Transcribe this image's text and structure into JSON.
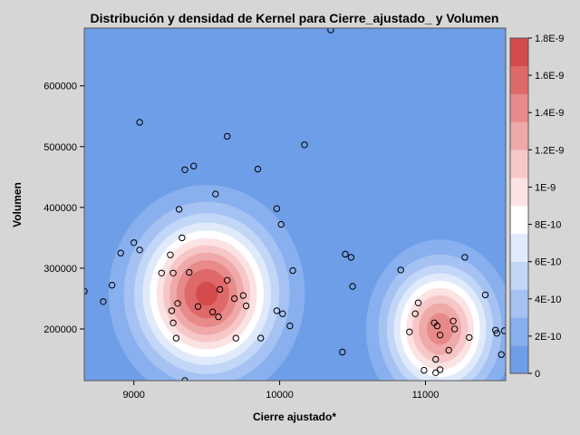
{
  "chart_data": {
    "type": "scatter",
    "title": "Distribución y densidad de Kernel para Cierre_ajustado_ y Volumen",
    "xlabel": "Cierre ajustado*",
    "ylabel": "Volumen",
    "xlim": [
      8660,
      11550
    ],
    "ylim": [
      115000,
      695000
    ],
    "x_ticks": [
      {
        "value": 9000,
        "label": "9000"
      },
      {
        "value": 10000,
        "label": "10000"
      },
      {
        "value": 11000,
        "label": "11000"
      }
    ],
    "y_ticks": [
      {
        "value": 200000,
        "label": "200000"
      },
      {
        "value": 300000,
        "label": "300000"
      },
      {
        "value": 400000,
        "label": "400000"
      },
      {
        "value": 500000,
        "label": "500000"
      },
      {
        "value": 600000,
        "label": "600000"
      }
    ],
    "density_legend": {
      "min": 0,
      "max": 1.8e-09,
      "labels": [
        {
          "value": 0,
          "label": "0"
        },
        {
          "value": 2e-10,
          "label": "2E-10"
        },
        {
          "value": 4e-10,
          "label": "4E-10"
        },
        {
          "value": 6e-10,
          "label": "6E-10"
        },
        {
          "value": 8e-10,
          "label": "8E-10"
        },
        {
          "value": 1e-09,
          "label": "1E-9"
        },
        {
          "value": 1.2e-09,
          "label": "1.2E-9"
        },
        {
          "value": 1.4e-09,
          "label": "1.4E-9"
        },
        {
          "value": 1.6e-09,
          "label": "1.6E-9"
        },
        {
          "value": 1.8e-09,
          "label": "1.8E-9"
        }
      ],
      "colors": [
        "#6f9ee8",
        "#89b0ee",
        "#a5c2f3",
        "#c2d6f7",
        "#e0eafb",
        "#ffffff",
        "#fce3e3",
        "#f7c7c7",
        "#f0a9a9",
        "#e88a8a",
        "#df6969",
        "#d44b4b"
      ]
    },
    "kernel_peaks": [
      {
        "x": 9500,
        "y": 258000,
        "height": 1.7e-09
      },
      {
        "x": 11100,
        "y": 200000,
        "height": 1.45e-09
      }
    ],
    "points": [
      {
        "x": 8660,
        "y": 262000
      },
      {
        "x": 8790,
        "y": 245000
      },
      {
        "x": 8850,
        "y": 272000
      },
      {
        "x": 8910,
        "y": 325000
      },
      {
        "x": 9000,
        "y": 342000
      },
      {
        "x": 9040,
        "y": 330000
      },
      {
        "x": 9040,
        "y": 540000
      },
      {
        "x": 9190,
        "y": 292000
      },
      {
        "x": 9250,
        "y": 322000
      },
      {
        "x": 9260,
        "y": 230000
      },
      {
        "x": 9270,
        "y": 210000
      },
      {
        "x": 9270,
        "y": 292000
      },
      {
        "x": 9290,
        "y": 185000
      },
      {
        "x": 9300,
        "y": 242000
      },
      {
        "x": 9310,
        "y": 397000
      },
      {
        "x": 9330,
        "y": 350000
      },
      {
        "x": 9350,
        "y": 462000
      },
      {
        "x": 9350,
        "y": 115000
      },
      {
        "x": 9380,
        "y": 293000
      },
      {
        "x": 9410,
        "y": 468000
      },
      {
        "x": 9440,
        "y": 237000
      },
      {
        "x": 9540,
        "y": 228000
      },
      {
        "x": 9560,
        "y": 422000
      },
      {
        "x": 9580,
        "y": 220000
      },
      {
        "x": 9590,
        "y": 265000
      },
      {
        "x": 9640,
        "y": 280000
      },
      {
        "x": 9640,
        "y": 517000
      },
      {
        "x": 9690,
        "y": 250000
      },
      {
        "x": 9700,
        "y": 185000
      },
      {
        "x": 9750,
        "y": 255000
      },
      {
        "x": 9770,
        "y": 238000
      },
      {
        "x": 9850,
        "y": 463000
      },
      {
        "x": 9870,
        "y": 185000
      },
      {
        "x": 9980,
        "y": 398000
      },
      {
        "x": 9980,
        "y": 230000
      },
      {
        "x": 10010,
        "y": 372000
      },
      {
        "x": 10020,
        "y": 225000
      },
      {
        "x": 10070,
        "y": 205000
      },
      {
        "x": 10090,
        "y": 296000
      },
      {
        "x": 10170,
        "y": 503000
      },
      {
        "x": 10350,
        "y": 692000
      },
      {
        "x": 10430,
        "y": 162000
      },
      {
        "x": 10450,
        "y": 323000
      },
      {
        "x": 10490,
        "y": 318000
      },
      {
        "x": 10500,
        "y": 270000
      },
      {
        "x": 10830,
        "y": 297000
      },
      {
        "x": 10890,
        "y": 195000
      },
      {
        "x": 10930,
        "y": 225000
      },
      {
        "x": 10950,
        "y": 243000
      },
      {
        "x": 10990,
        "y": 132000
      },
      {
        "x": 11060,
        "y": 210000
      },
      {
        "x": 11070,
        "y": 150000
      },
      {
        "x": 11070,
        "y": 128000
      },
      {
        "x": 11080,
        "y": 205000
      },
      {
        "x": 11100,
        "y": 190000
      },
      {
        "x": 11100,
        "y": 133000
      },
      {
        "x": 11160,
        "y": 165000
      },
      {
        "x": 11190,
        "y": 213000
      },
      {
        "x": 11200,
        "y": 200000
      },
      {
        "x": 11270,
        "y": 318000
      },
      {
        "x": 11300,
        "y": 186000
      },
      {
        "x": 11410,
        "y": 256000
      },
      {
        "x": 11480,
        "y": 198000
      },
      {
        "x": 11490,
        "y": 193000
      },
      {
        "x": 11520,
        "y": 158000
      },
      {
        "x": 11540,
        "y": 197000
      }
    ]
  }
}
